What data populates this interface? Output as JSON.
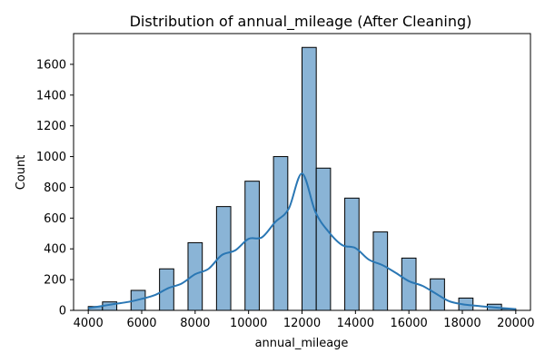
{
  "chart_data": {
    "type": "bar",
    "title": "Distribution of annual_mileage (After Cleaning)",
    "xlabel": "annual_mileage",
    "ylabel": "Count",
    "xlim": [
      3450,
      20550
    ],
    "ylim": [
      0,
      1800
    ],
    "xticks": [
      4000,
      6000,
      8000,
      10000,
      12000,
      14000,
      16000,
      18000,
      20000
    ],
    "yticks": [
      0,
      200,
      400,
      600,
      800,
      1000,
      1200,
      1400,
      1600
    ],
    "bin_width": 533.3,
    "bars": [
      {
        "x0": 4000,
        "x1": 4533,
        "value": 25
      },
      {
        "x0": 4533,
        "x1": 5067,
        "value": 55
      },
      {
        "x0": 5067,
        "x1": 5600,
        "value": 0
      },
      {
        "x0": 5600,
        "x1": 6133,
        "value": 130
      },
      {
        "x0": 6133,
        "x1": 6667,
        "value": 0
      },
      {
        "x0": 6667,
        "x1": 7200,
        "value": 270
      },
      {
        "x0": 7200,
        "x1": 7733,
        "value": 0
      },
      {
        "x0": 7733,
        "x1": 8267,
        "value": 440
      },
      {
        "x0": 8267,
        "x1": 8800,
        "value": 0
      },
      {
        "x0": 8800,
        "x1": 9333,
        "value": 675
      },
      {
        "x0": 9333,
        "x1": 9867,
        "value": 0
      },
      {
        "x0": 9867,
        "x1": 10400,
        "value": 840
      },
      {
        "x0": 10400,
        "x1": 10933,
        "value": 0
      },
      {
        "x0": 10933,
        "x1": 11467,
        "value": 1000
      },
      {
        "x0": 11467,
        "x1": 12000,
        "value": 0
      },
      {
        "x0": 12000,
        "x1": 12533,
        "value": 1710
      },
      {
        "x0": 12533,
        "x1": 13067,
        "value": 925
      },
      {
        "x0": 13067,
        "x1": 13600,
        "value": 0
      },
      {
        "x0": 13600,
        "x1": 14133,
        "value": 730
      },
      {
        "x0": 14133,
        "x1": 14667,
        "value": 0
      },
      {
        "x0": 14667,
        "x1": 15200,
        "value": 510
      },
      {
        "x0": 15200,
        "x1": 15733,
        "value": 0
      },
      {
        "x0": 15733,
        "x1": 16267,
        "value": 340
      },
      {
        "x0": 16267,
        "x1": 16800,
        "value": 0
      },
      {
        "x0": 16800,
        "x1": 17333,
        "value": 205
      },
      {
        "x0": 17333,
        "x1": 17867,
        "value": 0
      },
      {
        "x0": 17867,
        "x1": 18400,
        "value": 80
      },
      {
        "x0": 18400,
        "x1": 18933,
        "value": 0
      },
      {
        "x0": 18933,
        "x1": 19467,
        "value": 40
      },
      {
        "x0": 19467,
        "x1": 20000,
        "value": 10
      }
    ],
    "kde": {
      "x": [
        4000,
        4500,
        5000,
        5500,
        6000,
        6500,
        7000,
        7500,
        8000,
        8500,
        9000,
        9500,
        10000,
        10500,
        11000,
        11500,
        12000,
        12500,
        13000,
        13500,
        14000,
        14500,
        15000,
        15500,
        16000,
        16500,
        17000,
        17500,
        18000,
        18500,
        19000,
        19500,
        20000
      ],
      "y": [
        15,
        28,
        42,
        55,
        75,
        100,
        145,
        175,
        235,
        270,
        360,
        390,
        465,
        475,
        575,
        660,
        890,
        640,
        510,
        425,
        405,
        330,
        295,
        245,
        190,
        160,
        110,
        60,
        40,
        30,
        22,
        15,
        8
      ]
    },
    "colors": {
      "bar_fill": "#8ab4d6",
      "bar_edge": "#000000",
      "kde_line": "#2a77b4"
    },
    "grid": false,
    "legend": "none"
  }
}
